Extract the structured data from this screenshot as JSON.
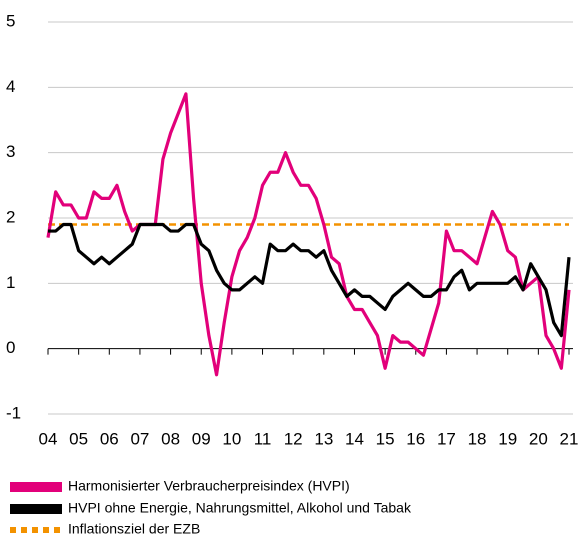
{
  "chart_data": {
    "type": "line",
    "x": [
      4,
      4.25,
      4.5,
      4.75,
      5,
      5.25,
      5.5,
      5.75,
      6,
      6.25,
      6.5,
      6.75,
      7,
      7.25,
      7.5,
      7.75,
      8,
      8.25,
      8.5,
      8.75,
      9,
      9.25,
      9.5,
      9.75,
      10,
      10.25,
      10.5,
      10.75,
      11,
      11.25,
      11.5,
      11.75,
      12,
      12.25,
      12.5,
      12.75,
      13,
      13.25,
      13.5,
      13.75,
      14,
      14.25,
      14.5,
      14.75,
      15,
      15.25,
      15.5,
      15.75,
      16,
      16.25,
      16.5,
      16.75,
      17,
      17.25,
      17.5,
      17.75,
      18,
      18.25,
      18.5,
      18.75,
      19,
      19.25,
      19.5,
      19.75,
      20,
      20.25,
      20.5,
      20.75,
      21
    ],
    "series": [
      {
        "name": "Harmonisierter Verbraucherpreisindex (HVPI)",
        "color": "#e2007a",
        "values": [
          1.7,
          2.4,
          2.2,
          2.2,
          2.0,
          2.0,
          2.4,
          2.3,
          2.3,
          2.5,
          2.1,
          1.8,
          1.9,
          1.9,
          1.9,
          2.9,
          3.3,
          3.6,
          3.9,
          2.3,
          1.0,
          0.2,
          -0.4,
          0.4,
          1.1,
          1.5,
          1.7,
          2.0,
          2.5,
          2.7,
          2.7,
          3.0,
          2.7,
          2.5,
          2.5,
          2.3,
          1.9,
          1.4,
          1.3,
          0.8,
          0.6,
          0.6,
          0.4,
          0.2,
          -0.3,
          0.2,
          0.1,
          0.1,
          0.0,
          -0.1,
          0.3,
          0.7,
          1.8,
          1.5,
          1.5,
          1.4,
          1.3,
          1.7,
          2.1,
          1.9,
          1.5,
          1.4,
          0.9,
          1.0,
          1.1,
          0.2,
          0.0,
          -0.3,
          0.9
        ]
      },
      {
        "name": "HVPI ohne Energie, Nahrungsmittel, Alkohol und Tabak",
        "color": "#000000",
        "values": [
          1.8,
          1.8,
          1.9,
          1.9,
          1.5,
          1.4,
          1.3,
          1.4,
          1.3,
          1.4,
          1.5,
          1.6,
          1.9,
          1.9,
          1.9,
          1.9,
          1.8,
          1.8,
          1.9,
          1.9,
          1.6,
          1.5,
          1.2,
          1.0,
          0.9,
          0.9,
          1.0,
          1.1,
          1.0,
          1.6,
          1.5,
          1.5,
          1.6,
          1.5,
          1.5,
          1.4,
          1.5,
          1.2,
          1.0,
          0.8,
          0.9,
          0.8,
          0.8,
          0.7,
          0.6,
          0.8,
          0.9,
          1.0,
          0.9,
          0.8,
          0.8,
          0.9,
          0.9,
          1.1,
          1.2,
          0.9,
          1.0,
          1.0,
          1.0,
          1.0,
          1.0,
          1.1,
          0.9,
          1.3,
          1.1,
          0.9,
          0.4,
          0.2,
          1.4
        ]
      }
    ],
    "target": {
      "name": "Inflationsziel der EZB",
      "value": 1.9,
      "color": "#f39200"
    },
    "xlim": [
      4,
      21
    ],
    "xticks": [
      {
        "value": 4,
        "label": "04"
      },
      {
        "value": 5,
        "label": "05"
      },
      {
        "value": 6,
        "label": "06"
      },
      {
        "value": 7,
        "label": "07"
      },
      {
        "value": 8,
        "label": "08"
      },
      {
        "value": 9,
        "label": "09"
      },
      10,
      11,
      12,
      13,
      14,
      15,
      16,
      17,
      18,
      19,
      20,
      21
    ],
    "ylim": [
      -1,
      5
    ],
    "yticks": [
      -1,
      0,
      1,
      2,
      3,
      4,
      5
    ],
    "grid": true
  }
}
